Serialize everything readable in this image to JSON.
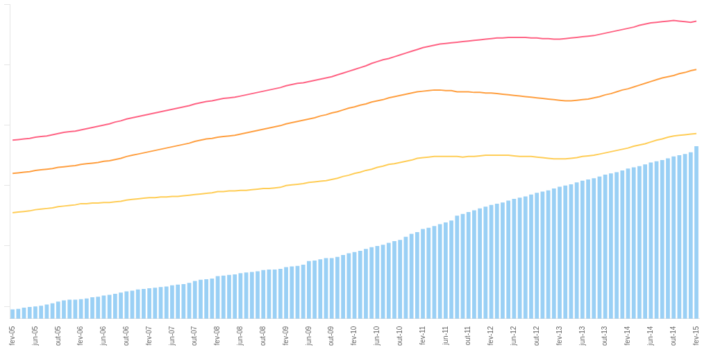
{
  "chart_data": {
    "type": "bar",
    "categories": [
      "fev-05",
      null,
      null,
      null,
      "jun-05",
      null,
      null,
      null,
      "out-05",
      null,
      null,
      null,
      "fev-06",
      null,
      null,
      null,
      "jun-06",
      null,
      null,
      null,
      "out-06",
      null,
      null,
      null,
      "fev-07",
      null,
      null,
      null,
      "jun-07",
      null,
      null,
      null,
      "out-07",
      null,
      null,
      null,
      "fev-08",
      null,
      null,
      null,
      "jun-08",
      null,
      null,
      null,
      "out-08",
      null,
      null,
      null,
      "fev-09",
      null,
      null,
      null,
      "jun-09",
      null,
      null,
      null,
      "out-09",
      null,
      null,
      null,
      "fev-10",
      null,
      null,
      null,
      "jun-10",
      null,
      null,
      null,
      "out-10",
      null,
      null,
      null,
      "fev-11",
      null,
      null,
      null,
      "jun-11",
      null,
      null,
      null,
      "out-11",
      null,
      null,
      null,
      "fev-12",
      null,
      null,
      null,
      "jun-12",
      null,
      null,
      null,
      "out-12",
      null,
      null,
      null,
      "fev-13",
      null,
      null,
      null,
      "jun-13",
      null,
      null,
      null,
      "out-13",
      null,
      null,
      null,
      "fev-14",
      null,
      null,
      null,
      "jun-14",
      null,
      null,
      null,
      "out-14",
      null,
      null,
      null,
      "fev-15"
    ],
    "series": [
      {
        "type": "bar",
        "values": [
          19.5,
          19.6,
          19.8,
          19.9,
          20.0,
          20.1,
          20.3,
          20.5,
          20.8,
          21.0,
          21.1,
          21.1,
          21.2,
          21.3,
          21.5,
          21.6,
          21.8,
          21.9,
          22.1,
          22.3,
          22.5,
          22.6,
          22.8,
          22.9,
          23.0,
          23.1,
          23.2,
          23.3,
          23.5,
          23.6,
          23.7,
          23.9,
          24.2,
          24.4,
          24.5,
          24.6,
          25.0,
          25.1,
          25.2,
          25.3,
          25.5,
          25.6,
          25.7,
          25.8,
          26.0,
          26.1,
          26.1,
          26.2,
          26.5,
          26.6,
          26.7,
          26.9,
          27.5,
          27.6,
          27.8,
          28.0,
          28.0,
          28.2,
          28.5,
          28.8,
          29.0,
          29.2,
          29.5,
          29.8,
          30.0,
          30.2,
          30.5,
          30.8,
          31.0,
          31.5,
          32.0,
          32.3,
          32.8,
          33.0,
          33.3,
          33.6,
          33.9,
          34.2,
          35.0,
          35.3,
          35.6,
          35.9,
          36.2,
          36.5,
          36.8,
          37.0,
          37.2,
          37.5,
          37.8,
          38.0,
          38.2,
          38.5,
          38.8,
          39.0,
          39.2,
          39.5,
          39.8,
          40.0,
          40.2,
          40.5,
          40.8,
          41.0,
          41.2,
          41.5,
          41.8,
          42.0,
          42.2,
          42.5,
          42.8,
          43.0,
          43.2,
          43.5,
          43.8,
          44.0,
          44.2,
          44.5,
          44.8,
          45.0,
          45.2,
          45.5,
          46.5
        ]
      },
      {
        "type": "line",
        "values": [
          47.5,
          47.6,
          47.7,
          47.8,
          48.0,
          48.1,
          48.2,
          48.4,
          48.6,
          48.8,
          48.9,
          49.0,
          49.2,
          49.4,
          49.6,
          49.8,
          50.0,
          50.2,
          50.5,
          50.7,
          51.0,
          51.2,
          51.4,
          51.6,
          51.8,
          52.0,
          52.2,
          52.4,
          52.6,
          52.8,
          53.0,
          53.2,
          53.5,
          53.7,
          53.9,
          54.0,
          54.2,
          54.4,
          54.5,
          54.6,
          54.8,
          55.0,
          55.2,
          55.4,
          55.6,
          55.8,
          56.0,
          56.2,
          56.5,
          56.7,
          56.9,
          57.0,
          57.2,
          57.4,
          57.6,
          57.8,
          58.0,
          58.3,
          58.6,
          58.9,
          59.2,
          59.5,
          59.8,
          60.2,
          60.5,
          60.8,
          61.0,
          61.3,
          61.6,
          61.9,
          62.2,
          62.5,
          62.8,
          63.0,
          63.2,
          63.4,
          63.5,
          63.6,
          63.7,
          63.8,
          63.9,
          64.0,
          64.1,
          64.2,
          64.3,
          64.4,
          64.4,
          64.5,
          64.5,
          64.5,
          64.5,
          64.4,
          64.4,
          64.3,
          64.3,
          64.2,
          64.2,
          64.3,
          64.4,
          64.5,
          64.6,
          64.7,
          64.8,
          65.0,
          65.2,
          65.4,
          65.6,
          65.8,
          66.0,
          66.2,
          66.5,
          66.7,
          66.9,
          67.0,
          67.1,
          67.2,
          67.3,
          67.2,
          67.1,
          67.0,
          67.2
        ]
      },
      {
        "type": "line",
        "values": [
          42.0,
          42.1,
          42.2,
          42.3,
          42.5,
          42.6,
          42.7,
          42.8,
          43.0,
          43.1,
          43.2,
          43.3,
          43.5,
          43.6,
          43.7,
          43.8,
          44.0,
          44.1,
          44.3,
          44.5,
          44.8,
          45.0,
          45.2,
          45.4,
          45.6,
          45.8,
          46.0,
          46.2,
          46.4,
          46.6,
          46.8,
          47.0,
          47.3,
          47.5,
          47.7,
          47.8,
          48.0,
          48.1,
          48.2,
          48.3,
          48.5,
          48.7,
          48.9,
          49.1,
          49.3,
          49.5,
          49.7,
          49.9,
          50.2,
          50.4,
          50.6,
          50.8,
          51.0,
          51.2,
          51.5,
          51.7,
          52.0,
          52.2,
          52.5,
          52.8,
          53.0,
          53.3,
          53.5,
          53.8,
          54.0,
          54.2,
          54.5,
          54.7,
          54.9,
          55.1,
          55.3,
          55.5,
          55.6,
          55.7,
          55.8,
          55.8,
          55.7,
          55.7,
          55.5,
          55.5,
          55.5,
          55.4,
          55.4,
          55.3,
          55.3,
          55.2,
          55.1,
          55.0,
          54.9,
          54.8,
          54.7,
          54.6,
          54.5,
          54.4,
          54.3,
          54.2,
          54.1,
          54.0,
          54.0,
          54.1,
          54.2,
          54.3,
          54.5,
          54.7,
          55.0,
          55.2,
          55.5,
          55.8,
          56.0,
          56.3,
          56.6,
          56.9,
          57.2,
          57.5,
          57.8,
          58.0,
          58.2,
          58.5,
          58.7,
          59.0,
          59.2
        ]
      },
      {
        "type": "line",
        "values": [
          35.5,
          35.6,
          35.7,
          35.8,
          36.0,
          36.1,
          36.2,
          36.3,
          36.5,
          36.6,
          36.7,
          36.8,
          37.0,
          37.0,
          37.1,
          37.1,
          37.2,
          37.2,
          37.3,
          37.4,
          37.6,
          37.7,
          37.8,
          37.9,
          38.0,
          38.0,
          38.1,
          38.1,
          38.2,
          38.2,
          38.3,
          38.4,
          38.5,
          38.6,
          38.7,
          38.8,
          39.0,
          39.0,
          39.1,
          39.1,
          39.2,
          39.2,
          39.3,
          39.4,
          39.5,
          39.5,
          39.6,
          39.7,
          40.0,
          40.1,
          40.2,
          40.3,
          40.5,
          40.6,
          40.7,
          40.8,
          41.0,
          41.2,
          41.5,
          41.7,
          42.0,
          42.2,
          42.5,
          42.7,
          43.0,
          43.2,
          43.5,
          43.6,
          43.8,
          44.0,
          44.2,
          44.5,
          44.6,
          44.7,
          44.8,
          44.8,
          44.8,
          44.8,
          44.8,
          44.7,
          44.8,
          44.8,
          44.9,
          45.0,
          45.0,
          45.0,
          45.0,
          45.0,
          44.9,
          44.8,
          44.8,
          44.8,
          44.7,
          44.6,
          44.5,
          44.4,
          44.4,
          44.4,
          44.5,
          44.6,
          44.8,
          44.9,
          45.0,
          45.2,
          45.4,
          45.6,
          45.8,
          46.0,
          46.2,
          46.5,
          46.7,
          46.9,
          47.2,
          47.5,
          47.7,
          48.0,
          48.2,
          48.3,
          48.4,
          48.5,
          48.6
        ]
      }
    ],
    "ylim": [
      18,
      70
    ],
    "yticks": [
      20,
      30,
      40,
      50,
      60,
      70
    ],
    "grid": false,
    "tick_labels": "x"
  }
}
